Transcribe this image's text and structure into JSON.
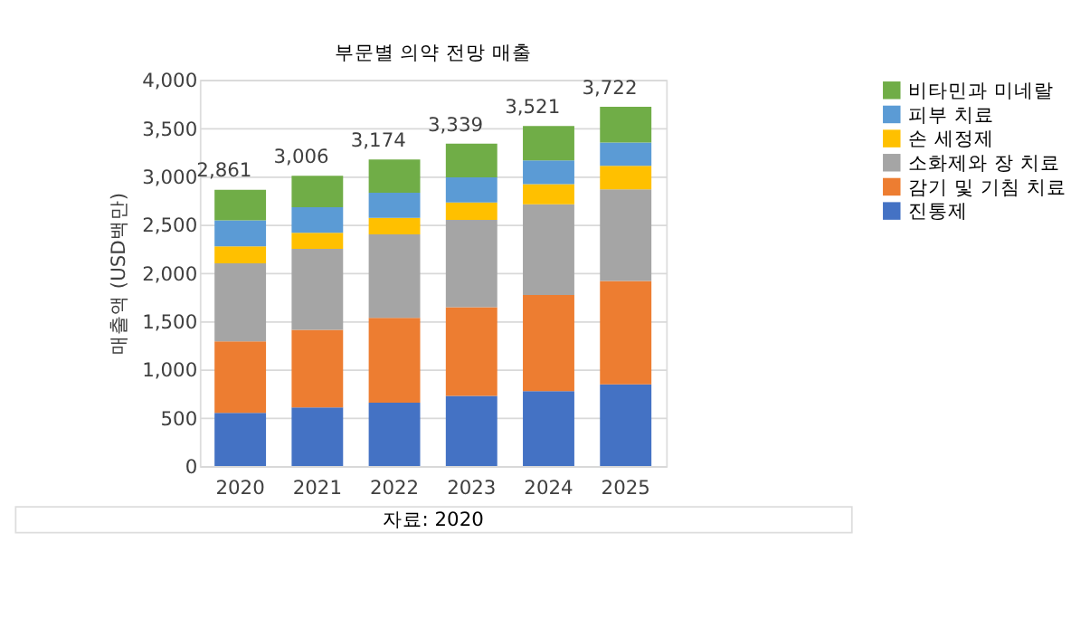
{
  "chart_data": {
    "type": "bar",
    "stacked": true,
    "title": "부문별 의약 전망 매출",
    "ylabel": "매출액 (USD백만)",
    "categories": [
      "2020",
      "2021",
      "2022",
      "2023",
      "2024",
      "2025"
    ],
    "series": [
      {
        "name": "진통제",
        "color": "#4472c4",
        "values": [
          550,
          605,
          655,
          725,
          775,
          845
        ]
      },
      {
        "name": "감기 및 기침 치료",
        "color": "#ed7d31",
        "values": [
          740,
          805,
          880,
          920,
          995,
          1070
        ]
      },
      {
        "name": "소화제와 장 치료",
        "color": "#a5a5a5",
        "values": [
          810,
          840,
          865,
          905,
          940,
          950
        ]
      },
      {
        "name": "손 세정제",
        "color": "#ffc000",
        "values": [
          175,
          165,
          170,
          180,
          210,
          245
        ]
      },
      {
        "name": "피부 치료",
        "color": "#5b9bd5",
        "values": [
          270,
          265,
          260,
          260,
          245,
          240
        ]
      },
      {
        "name": "비타민과 미네랄",
        "color": "#70ad47",
        "values": [
          316,
          326,
          344,
          349,
          356,
          372
        ]
      }
    ],
    "totals": [
      "2,861",
      "3,006",
      "3,174",
      "3,339",
      "3,521",
      "3,722"
    ],
    "ylim": [
      0,
      4000
    ],
    "yticks": [
      0,
      500,
      {
        "value": 1000,
        "label": "1,000"
      },
      {
        "value": 1500,
        "label": "1,500"
      },
      {
        "value": 2000,
        "label": "2,000"
      },
      {
        "value": 2500,
        "label": "2,500"
      },
      {
        "value": 3000,
        "label": "3,000"
      },
      {
        "value": 3500,
        "label": "3,500"
      },
      {
        "value": 4000,
        "label": "4,000"
      }
    ],
    "grid": "y",
    "legend": "right",
    "annotations": [
      "자료: 2020"
    ]
  }
}
